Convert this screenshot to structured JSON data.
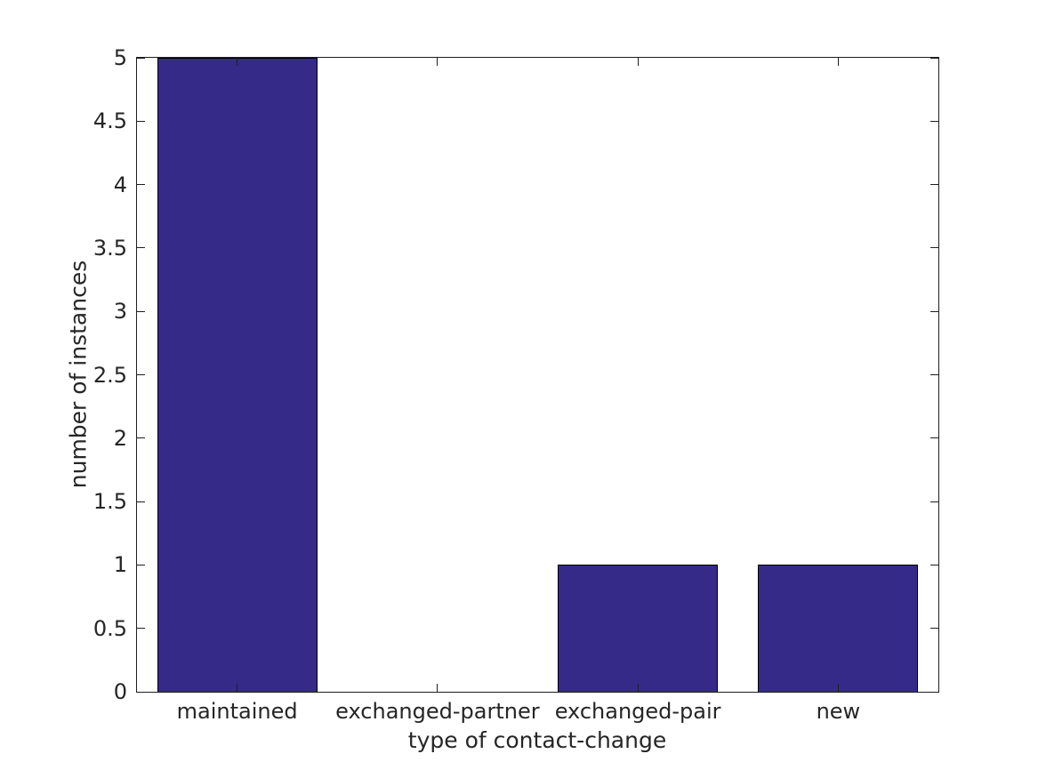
{
  "figure": {
    "background_color": "#ffffff",
    "axis_color": "#1f1f1f",
    "text_color": "#262626",
    "tick_length": 9
  },
  "chart_data": {
    "type": "bar",
    "title": "",
    "xlabel": "type of contact-change",
    "ylabel": "number of instances",
    "categories": [
      "maintained",
      "exchanged-partner",
      "exchanged-pair",
      "new"
    ],
    "values": [
      5,
      0,
      1,
      1
    ],
    "ylim": [
      0,
      5
    ],
    "yticks": [
      0,
      0.5,
      1,
      1.5,
      2,
      2.5,
      3,
      3.5,
      4,
      4.5,
      5
    ],
    "ytick_labels": [
      "0",
      "0.5",
      "1",
      "1.5",
      "2",
      "2.5",
      "3",
      "3.5",
      "4",
      "4.5",
      "5"
    ],
    "bar_color": "#352A87",
    "bar_edge_color": "#000000",
    "bar_width_fraction": 0.8,
    "grid": false,
    "legend_position": "none",
    "box": true,
    "tick_direction": "in"
  }
}
